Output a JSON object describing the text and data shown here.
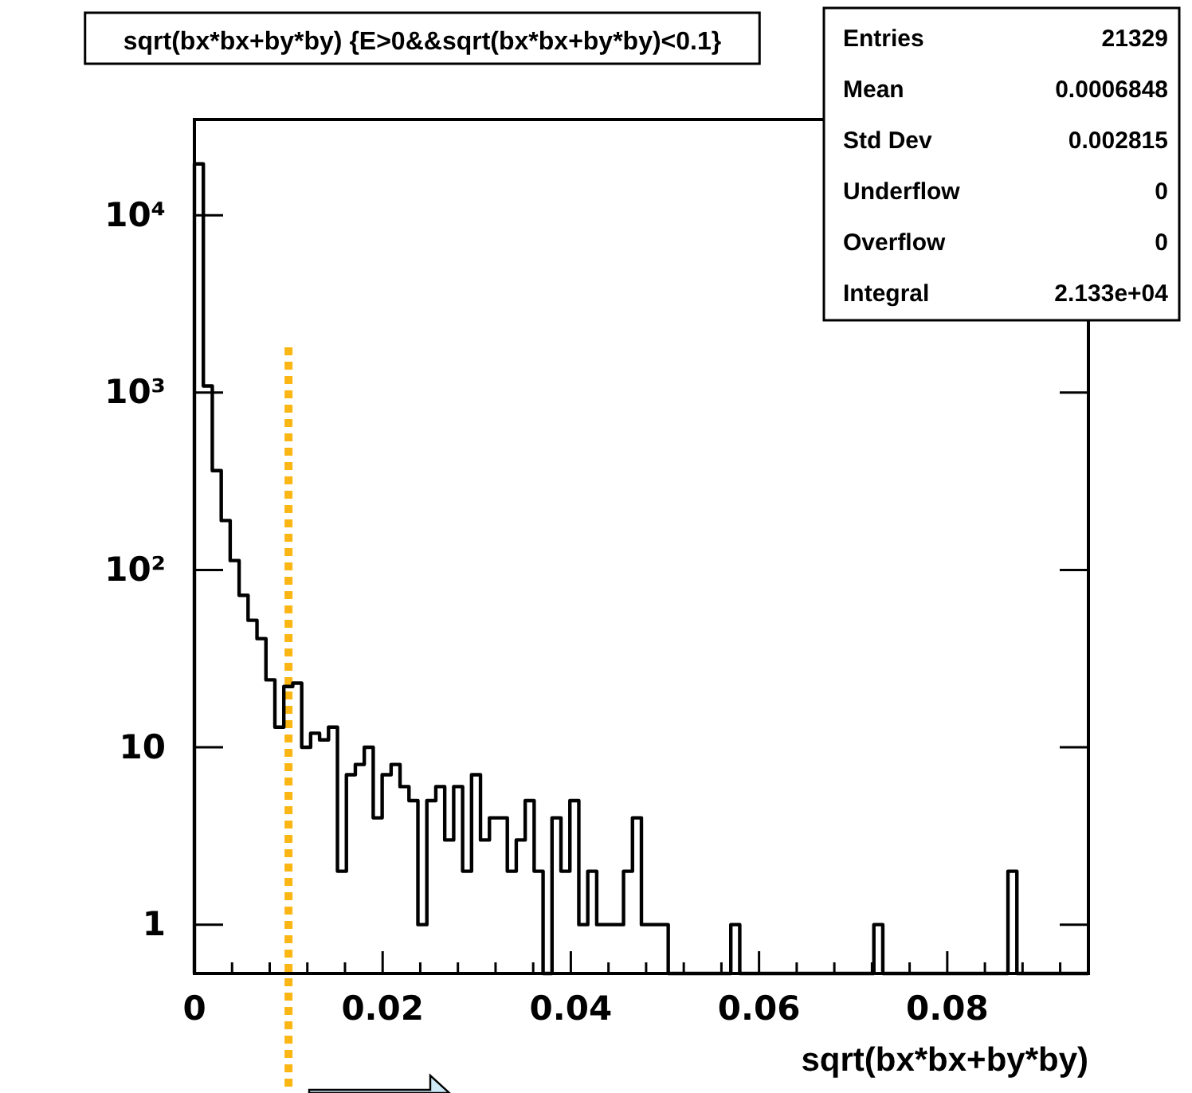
{
  "chart_data": {
    "type": "histogram",
    "title": "sqrt(bx*bx+by*by) {E>0&&sqrt(bx*bx+by*by)<0.1}",
    "xlabel": "sqrt(bx*bx+by*by)",
    "bins": [
      0,
      0.00095,
      0.0019,
      0.00285,
      0.0038,
      0.00475,
      0.0057,
      0.00665,
      0.0076,
      0.00855,
      0.0095,
      0.01045,
      0.0114,
      0.01235,
      0.0133,
      0.01425,
      0.0152,
      0.01615,
      0.0171,
      0.01805,
      0.019,
      0.01995,
      0.0209,
      0.02185,
      0.0228,
      0.02375,
      0.0247,
      0.02565,
      0.0266,
      0.02755,
      0.0285,
      0.02945,
      0.0304,
      0.03135,
      0.0323,
      0.03325,
      0.0342,
      0.03515,
      0.0361,
      0.03705,
      0.038,
      0.03895,
      0.0399,
      0.04085,
      0.0418,
      0.04275,
      0.0437,
      0.04465,
      0.0456,
      0.04655,
      0.0475,
      0.04845,
      0.0494,
      0.05035,
      0.0513,
      0.05225,
      0.0532,
      0.05415,
      0.0551,
      0.05605,
      0.057,
      0.05795,
      0.0589,
      0.05985,
      0.0608,
      0.06175,
      0.0627,
      0.06365,
      0.0646,
      0.06555,
      0.0665,
      0.06745,
      0.0684,
      0.06935,
      0.0703,
      0.07125,
      0.0722,
      0.07315,
      0.0741,
      0.07505,
      0.076,
      0.07695,
      0.0779,
      0.07885,
      0.0798,
      0.08075,
      0.0817,
      0.08265,
      0.0836,
      0.08455,
      0.0855,
      0.08645,
      0.0874,
      0.08835,
      0.0893,
      0.09025,
      0.0912,
      0.09215,
      0.0931,
      0.09405,
      0.095
    ],
    "values": [
      19500,
      1090,
      363,
      190,
      113,
      72,
      52,
      41,
      24,
      13,
      22,
      23,
      10,
      12,
      11,
      13,
      2,
      7,
      8,
      10,
      4,
      7,
      8,
      6,
      5,
      1,
      5,
      6,
      3,
      6,
      2,
      7,
      3,
      4,
      4,
      2,
      3,
      5,
      2,
      null,
      4,
      2,
      5,
      1,
      2,
      1,
      1,
      1,
      2,
      4,
      1,
      1,
      1,
      null,
      null,
      null,
      null,
      null,
      null,
      null,
      1,
      null,
      null,
      null,
      null,
      null,
      null,
      null,
      null,
      null,
      null,
      null,
      null,
      null,
      null,
      null,
      1,
      null,
      null,
      null,
      null,
      null,
      null,
      null,
      null,
      null,
      null,
      null,
      null,
      null,
      null,
      2,
      null,
      null,
      null,
      null,
      null,
      null,
      null,
      null
    ],
    "color": "#000000",
    "log": true,
    "xlim": [
      0,
      0.095
    ],
    "ylim": [
      0.53,
      34700
    ],
    "xticks": [
      0,
      {
        "value": 0.004,
        "label": null
      },
      {
        "value": 0.008,
        "label": null
      },
      {
        "value": 0.012,
        "label": null
      },
      {
        "value": 0.016,
        "label": null
      },
      0.02,
      {
        "value": 0.024,
        "label": null
      },
      {
        "value": 0.028,
        "label": null
      },
      {
        "value": 0.032,
        "label": null
      },
      {
        "value": 0.036,
        "label": null
      },
      0.04,
      {
        "value": 0.044,
        "label": null
      },
      {
        "value": 0.048,
        "label": null
      },
      {
        "value": 0.052,
        "label": null
      },
      {
        "value": 0.056,
        "label": null
      },
      0.06,
      {
        "value": 0.064,
        "label": null
      },
      {
        "value": 0.068,
        "label": null
      },
      {
        "value": 0.072,
        "label": null
      },
      {
        "value": 0.076,
        "label": null
      },
      0.08,
      {
        "value": 0.084,
        "label": null
      },
      {
        "value": 0.088,
        "label": null
      },
      {
        "value": 0.092,
        "label": null
      }
    ],
    "yticks": [
      1,
      10,
      {
        "value": 100,
        "label": "10²"
      },
      {
        "value": 1000,
        "label": "10³"
      },
      {
        "value": 10000,
        "label": "10⁴"
      }
    ],
    "ref_lines": [
      {
        "axis": "x",
        "value": 0.01,
        "color": "#fbb614",
        "line_style": "dotted"
      }
    ],
    "annotations": [
      "Entries",
      "21329",
      "Mean",
      "0.0006848",
      "Std Dev",
      "0.002815",
      "Underflow",
      "0",
      "Overflow",
      "0",
      "Integral",
      "2.133e+04"
    ]
  }
}
